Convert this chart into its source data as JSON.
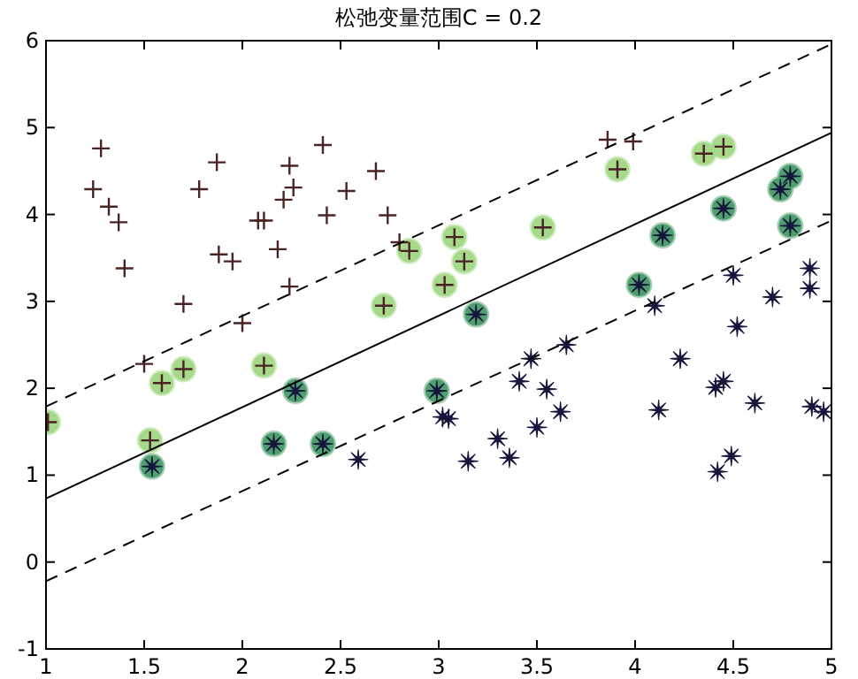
{
  "chart_data": {
    "type": "scatter",
    "title": "松弛变量范围C = 0.2",
    "xlim": [
      1,
      5
    ],
    "ylim": [
      -1,
      6
    ],
    "xticks": [
      1,
      1.5,
      2,
      2.5,
      3,
      3.5,
      4,
      4.5,
      5
    ],
    "yticks": [
      -1,
      0,
      1,
      2,
      3,
      4,
      5,
      6
    ],
    "series": [
      {
        "type": "scatter",
        "marker": "circle",
        "x": [
          2.85,
          2.72,
          3.08,
          3.13,
          3.03,
          3.53,
          3.91,
          4.35,
          4.45,
          1.01,
          1.59,
          1.7,
          2.11,
          1.53,
          4.74,
          4.79,
          4.45,
          4.79,
          4.14,
          4.02,
          3.19,
          1.54,
          2.27,
          2.16,
          2.41,
          2.99
        ],
        "values": [
          3.58,
          2.95,
          3.74,
          3.46,
          3.19,
          3.85,
          4.52,
          4.7,
          4.78,
          1.61,
          2.06,
          2.22,
          2.26,
          1.4,
          4.29,
          4.44,
          4.07,
          3.87,
          3.76,
          3.19,
          2.85,
          1.1,
          1.97,
          1.36,
          1.36,
          1.97
        ],
        "colors": [
          "#a6d98a",
          "#a6d98a",
          "#a6d98a",
          "#a6d98a",
          "#a6d98a",
          "#a6d98a",
          "#a6d98a",
          "#a6d98a",
          "#a6d98a",
          "#a6d98a",
          "#a6d98a",
          "#a6d98a",
          "#a6d98a",
          "#a6d98a",
          "#4f9f6f",
          "#4f9f6f",
          "#4f9f6f",
          "#4f9f6f",
          "#4f9f6f",
          "#4f9f6f",
          "#4f9f6f",
          "#4f9f6f",
          "#4f9f6f",
          "#4f9f6f",
          "#4f9f6f",
          "#4f9f6f"
        ]
      },
      {
        "type": "scatter",
        "marker": "cross",
        "color": "#4a2424",
        "x": [
          1.28,
          1.24,
          1.32,
          1.37,
          1.4,
          1.7,
          1.78,
          1.87,
          1.88,
          1.95,
          2.0,
          2.08,
          2.11,
          2.18,
          2.21,
          2.24,
          2.26,
          2.24,
          2.41,
          2.43,
          2.53,
          2.68,
          2.74,
          2.8,
          3.86,
          3.99,
          1.5,
          2.85,
          2.72,
          3.08,
          3.13,
          3.03,
          3.53,
          3.91,
          4.35,
          4.45,
          1.01,
          1.59,
          1.7,
          2.11,
          1.53
        ],
        "values": [
          4.76,
          4.29,
          4.09,
          3.91,
          3.38,
          2.97,
          4.29,
          4.6,
          3.54,
          3.46,
          2.75,
          3.93,
          3.93,
          3.6,
          4.17,
          4.56,
          4.31,
          3.17,
          4.8,
          3.99,
          4.27,
          4.5,
          3.99,
          3.68,
          4.86,
          4.84,
          2.28,
          3.58,
          2.95,
          3.74,
          3.46,
          3.19,
          3.85,
          4.52,
          4.7,
          4.78,
          1.61,
          2.06,
          2.22,
          2.26,
          1.4
        ]
      },
      {
        "type": "scatter",
        "marker": "star",
        "color": "#16163c",
        "x": [
          2.59,
          3.02,
          3.05,
          3.15,
          3.3,
          3.36,
          3.41,
          3.47,
          3.5,
          3.55,
          3.62,
          3.65,
          4.12,
          4.23,
          4.41,
          4.45,
          4.42,
          4.49,
          4.61,
          4.52,
          4.9,
          4.96,
          4.5,
          4.1,
          4.7,
          4.89,
          4.89,
          4.74,
          4.79,
          4.45,
          4.79,
          4.14,
          4.02,
          3.19,
          1.54,
          2.27,
          2.16,
          2.41,
          2.99
        ],
        "values": [
          1.18,
          1.67,
          1.65,
          1.16,
          1.42,
          1.2,
          2.08,
          2.34,
          1.55,
          1.99,
          1.73,
          2.5,
          1.75,
          2.34,
          2.01,
          2.08,
          1.04,
          1.22,
          1.83,
          2.71,
          1.79,
          1.73,
          3.3,
          2.95,
          3.05,
          3.38,
          3.15,
          4.29,
          4.44,
          4.07,
          3.87,
          3.76,
          3.19,
          2.85,
          1.1,
          1.97,
          1.36,
          1.36,
          1.97
        ]
      },
      {
        "type": "line",
        "line_style": "solid",
        "color": "#000000",
        "x": [
          1,
          5
        ],
        "values": [
          0.73,
          4.94
        ]
      },
      {
        "type": "line",
        "line_style": "dashed",
        "color": "#000000",
        "x": [
          1,
          5
        ],
        "values": [
          1.79,
          5.96
        ]
      },
      {
        "type": "line",
        "line_style": "dashed",
        "color": "#000000",
        "x": [
          1,
          5
        ],
        "values": [
          -0.22,
          3.93
        ]
      }
    ]
  }
}
